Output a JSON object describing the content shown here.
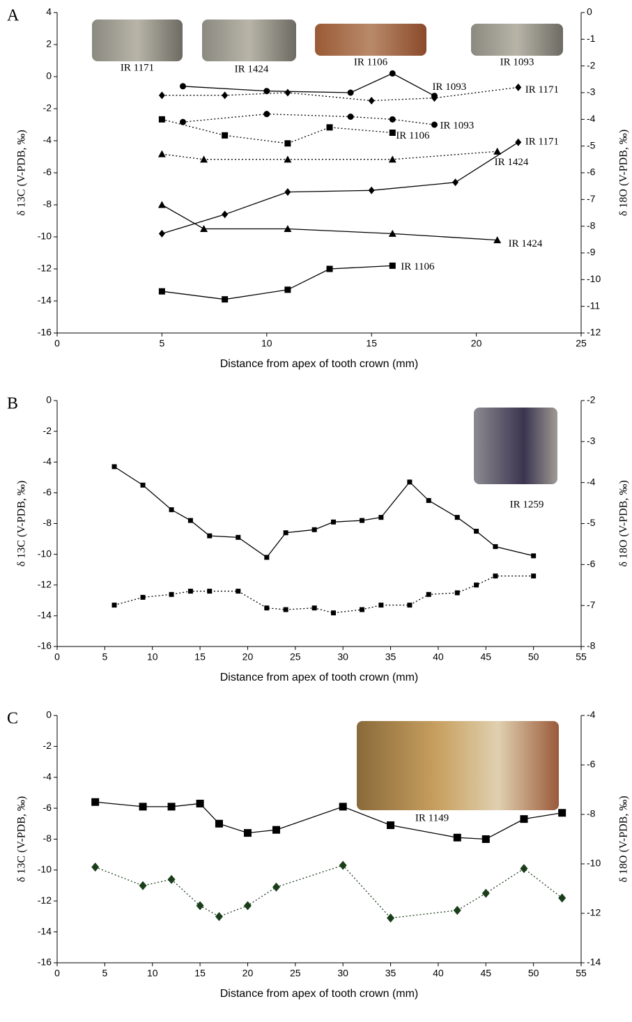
{
  "chart_data": [
    {
      "type": "line",
      "panel": "A",
      "xlabel": "Distance from apex of tooth crown (mm)",
      "ylabel": "δ 13C (V-PDB, ‰)",
      "y2label": "δ 18O (V-PDB, ‰)",
      "xlim": [
        0,
        25
      ],
      "xticks": [
        0,
        5,
        10,
        15,
        20,
        25
      ],
      "ylim": [
        -16,
        4
      ],
      "yticks": [
        4,
        2,
        0,
        -2,
        -4,
        -6,
        -8,
        -10,
        -12,
        -14,
        -16
      ],
      "y2lim": [
        -12,
        0
      ],
      "y2ticks": [
        0,
        -1,
        -2,
        -3,
        -4,
        -5,
        -6,
        -7,
        -8,
        -9,
        -10,
        -11,
        -12
      ],
      "images": [
        "IR 1171",
        "IR 1424",
        "IR 1106",
        "IR 1093"
      ],
      "series": [
        {
          "name": "IR 1093",
          "color": "#000000",
          "marker": "circle",
          "line_style": "solid",
          "x": [
            6,
            10,
            14,
            16,
            18
          ],
          "values": [
            -0.6,
            -0.9,
            -1.0,
            0.2,
            -1.2
          ]
        },
        {
          "name": "IR 1171",
          "color": "#000000",
          "marker": "diamond",
          "line_style": "dotted",
          "axis": "y2",
          "x": [
            5,
            8,
            11,
            15,
            18,
            22
          ],
          "values": [
            -3.1,
            -3.1,
            -3.0,
            -3.3,
            -3.2,
            -2.8
          ]
        },
        {
          "name": "IR 1093",
          "color": "#000000",
          "marker": "circle",
          "line_style": "dotted",
          "axis": "y2",
          "x": [
            6,
            10,
            14,
            16,
            18
          ],
          "values": [
            -4.1,
            -3.8,
            -3.9,
            -4.0,
            -4.2
          ]
        },
        {
          "name": "IR 1106",
          "color": "#000000",
          "marker": "square",
          "line_style": "dotted",
          "axis": "y2",
          "x": [
            5,
            8,
            11,
            13,
            16
          ],
          "values": [
            -4.0,
            -4.6,
            -4.9,
            -4.3,
            -4.5
          ]
        },
        {
          "name": "IR 1424",
          "color": "#000000",
          "marker": "triangle",
          "line_style": "dotted",
          "axis": "y2",
          "x": [
            5,
            7,
            11,
            16,
            21
          ],
          "values": [
            -5.3,
            -5.5,
            -5.5,
            -5.5,
            -5.2
          ]
        },
        {
          "name": "IR 1171",
          "color": "#000000",
          "marker": "diamond",
          "line_style": "solid",
          "x": [
            5,
            8,
            11,
            15,
            19,
            22
          ],
          "values": [
            -9.8,
            -8.6,
            -7.2,
            -7.1,
            -6.6,
            -4.1
          ]
        },
        {
          "name": "IR 1424",
          "color": "#000000",
          "marker": "triangle",
          "line_style": "solid",
          "x": [
            5,
            7,
            11,
            16,
            21
          ],
          "values": [
            -8.0,
            -9.5,
            -9.5,
            -9.8,
            -10.2
          ]
        },
        {
          "name": "IR 1106",
          "color": "#000000",
          "marker": "square",
          "line_style": "solid",
          "x": [
            5,
            8,
            11,
            13,
            16
          ],
          "values": [
            -13.4,
            -13.9,
            -13.3,
            -12.0,
            -11.8
          ]
        }
      ]
    },
    {
      "type": "line",
      "panel": "B",
      "xlabel": "Distance from apex of tooth crown (mm)",
      "ylabel": "δ 13C (V-PDB, ‰)",
      "y2label": "δ 18O (V-PDB, ‰)",
      "xlim": [
        0,
        55
      ],
      "xticks": [
        0,
        5,
        10,
        15,
        20,
        25,
        30,
        35,
        40,
        45,
        50,
        55
      ],
      "ylim": [
        -16,
        0
      ],
      "yticks": [
        0,
        -2,
        -4,
        -6,
        -8,
        -10,
        -12,
        -14,
        -16
      ],
      "y2lim": [
        -8,
        -2
      ],
      "y2ticks": [
        -2,
        -3,
        -4,
        -5,
        -6,
        -7,
        -8
      ],
      "images": [
        "IR 1259"
      ],
      "series": [
        {
          "color": "#000000",
          "marker": "square",
          "line_style": "solid",
          "x": [
            6,
            9,
            12,
            14,
            16,
            19,
            22,
            24,
            27,
            29,
            32,
            34,
            37,
            39,
            42,
            44,
            46,
            50
          ],
          "values": [
            -4.3,
            -5.5,
            -7.1,
            -7.8,
            -8.8,
            -8.9,
            -10.2,
            -8.6,
            -8.4,
            -7.9,
            -7.8,
            -7.6,
            -5.3,
            -6.5,
            -7.6,
            -8.5,
            -9.5,
            -10.1
          ]
        },
        {
          "color": "#000000",
          "marker": "square",
          "line_style": "dotted",
          "axis": "y2",
          "x": [
            6,
            9,
            12,
            14,
            16,
            19,
            22,
            24,
            27,
            29,
            32,
            34,
            37,
            39,
            42,
            44,
            46,
            50
          ],
          "values": [
            -6.99,
            -6.8,
            -6.73,
            -6.65,
            -6.65,
            -6.65,
            -7.06,
            -7.1,
            -7.06,
            -7.18,
            -7.1,
            -6.99,
            -6.99,
            -6.73,
            -6.69,
            -6.5,
            -6.28,
            -6.28
          ]
        }
      ]
    },
    {
      "type": "line",
      "panel": "C",
      "xlabel": "Distance from apex of tooth crown (mm)",
      "ylabel": "δ 13C (V-PDB, ‰)",
      "y2label": "δ 18O (V-PDB, ‰)",
      "xlim": [
        0,
        55
      ],
      "xticks": [
        0,
        5,
        10,
        15,
        20,
        25,
        30,
        35,
        40,
        45,
        50,
        55
      ],
      "ylim": [
        -16,
        0
      ],
      "yticks": [
        0,
        -2,
        -4,
        -6,
        -8,
        -10,
        -12,
        -14,
        -16
      ],
      "y2lim": [
        -14,
        -4
      ],
      "y2ticks": [
        -4,
        -6,
        -8,
        -10,
        -12,
        -14
      ],
      "images": [
        "IR 1149"
      ],
      "series": [
        {
          "color": "#000000",
          "marker": "square",
          "line_style": "solid",
          "x": [
            4,
            9,
            12,
            15,
            17,
            20,
            23,
            30,
            35,
            42,
            45,
            49,
            53
          ],
          "values": [
            -5.6,
            -5.9,
            -5.9,
            -5.7,
            -7.0,
            -7.6,
            -7.4,
            -5.9,
            -7.1,
            -7.9,
            -8.0,
            -6.7,
            -6.3
          ]
        },
        {
          "color": "#1a3d1a",
          "marker": "diamond",
          "line_style": "dotted",
          "axis": "y2",
          "x": [
            4,
            9,
            12,
            15,
            17,
            20,
            23,
            30,
            35,
            42,
            45,
            49,
            53
          ],
          "values": [
            -10.13,
            -10.88,
            -10.63,
            -11.69,
            -12.13,
            -11.69,
            -10.94,
            -10.06,
            -12.19,
            -11.88,
            -11.19,
            -10.19,
            -11.38
          ]
        }
      ]
    }
  ]
}
